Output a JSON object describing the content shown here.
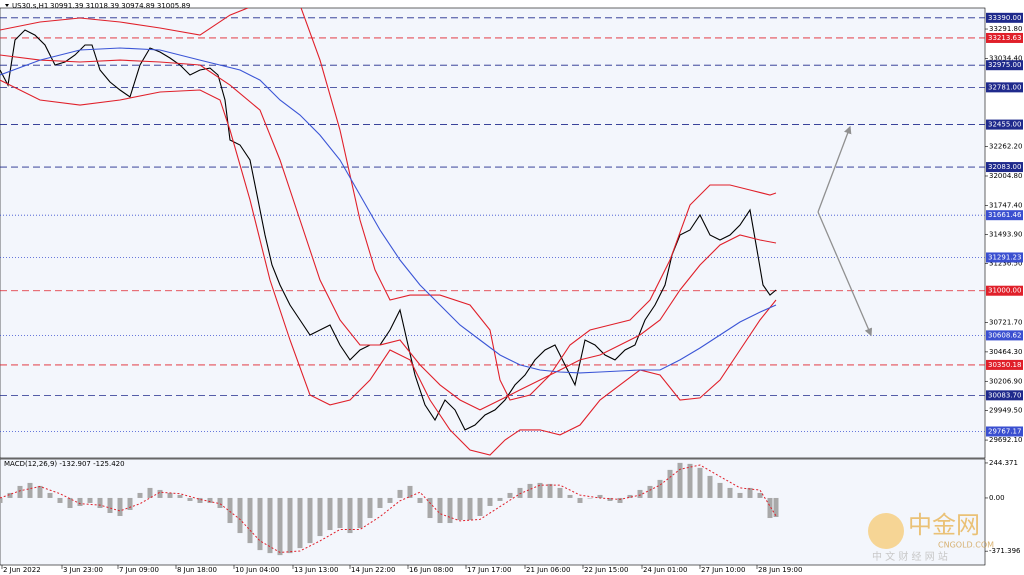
{
  "chart_data": [
    {
      "type": "line",
      "title": "US30.s,H1",
      "ohlc_label": "30991.39 31018.39 30974.89 31005.89",
      "xlim": [
        0,
        985
      ],
      "ylim": [
        29535,
        33476
      ],
      "yticks": [
        {
          "value": 33291.8,
          "label": "33291.80"
        },
        {
          "value": 33034.4,
          "label": "33034.40"
        },
        {
          "value": 32262.2,
          "label": "32262.20"
        },
        {
          "value": 32004.8,
          "label": "32004.80"
        },
        {
          "value": 31747.4,
          "label": "31747.40"
        },
        {
          "value": 31493.9,
          "label": "31493.90"
        },
        {
          "value": 31236.5,
          "label": "31236.50"
        },
        {
          "value": 30721.7,
          "label": "30721.70"
        },
        {
          "value": 30464.3,
          "label": "30464.30"
        },
        {
          "value": 30206.9,
          "label": "30206.90"
        },
        {
          "value": 29949.5,
          "label": "29949.50"
        },
        {
          "value": 29692.1,
          "label": "29692.10"
        }
      ],
      "levels": [
        {
          "value": 33390,
          "label": "33390.00",
          "color": "#1f2a8c"
        },
        {
          "value": 33213.63,
          "label": "33213.63",
          "color": "#e0202a"
        },
        {
          "value": 32975,
          "label": "32975.00",
          "color": "#1f2a8c"
        },
        {
          "value": 32781,
          "label": "32781.00",
          "color": "#1f2a8c"
        },
        {
          "value": 32455,
          "label": "32455.00",
          "color": "#1f2a8c"
        },
        {
          "value": 32083,
          "label": "32083.00",
          "color": "#1f2a8c"
        },
        {
          "value": 31661.46,
          "label": "31661.46",
          "color": "#3a4fd0"
        },
        {
          "value": 31291.23,
          "label": "31291.23",
          "color": "#3a4fd0"
        },
        {
          "value": 31000,
          "label": "31000.00",
          "color": "#e0202a"
        },
        {
          "value": 30608.62,
          "label": "30608.62",
          "color": "#3a4fd0"
        },
        {
          "value": 30350.18,
          "label": "30350.18",
          "color": "#e0202a"
        },
        {
          "value": 30083.7,
          "label": "30083.70",
          "color": "#1f2a8c"
        },
        {
          "value": 29767.17,
          "label": "29767.17",
          "color": "#3a4fd0"
        }
      ],
      "series": [
        {
          "color": "#000000",
          "x": [
            0,
            8,
            15,
            25,
            35,
            45,
            55,
            65,
            75,
            85,
            92,
            100,
            110,
            120,
            130,
            140,
            150,
            160,
            170,
            180,
            190,
            200,
            210,
            218,
            225,
            230,
            240,
            250,
            258,
            265,
            272,
            280,
            290,
            300,
            310,
            320,
            330,
            340,
            350,
            360,
            370,
            380,
            390,
            400,
            408,
            415,
            425,
            435,
            445,
            455,
            465,
            475,
            485,
            495,
            505,
            515,
            525,
            535,
            545,
            555,
            565,
            575,
            585,
            595,
            605,
            615,
            625,
            635,
            645,
            655,
            665,
            672,
            680,
            690,
            700,
            710,
            720,
            730,
            740,
            750,
            757,
            763,
            770,
            776
          ],
          "values": [
            32933,
            32801,
            33196,
            33283,
            33239,
            33152,
            32977,
            33003,
            33064,
            33152,
            33152,
            32933,
            32828,
            32758,
            32697,
            32977,
            33126,
            33091,
            33038,
            32977,
            32889,
            32933,
            32950,
            32889,
            32670,
            32320,
            32276,
            32145,
            31795,
            31488,
            31225,
            31050,
            30875,
            30744,
            30612,
            30656,
            30700,
            30525,
            30394,
            30481,
            30525,
            30525,
            30656,
            30831,
            30525,
            30262,
            30000,
            29868,
            30043,
            29956,
            29781,
            29824,
            29912,
            29956,
            30043,
            30175,
            30262,
            30394,
            30481,
            30525,
            30350,
            30175,
            30568,
            30525,
            30437,
            30394,
            30481,
            30525,
            30744,
            30875,
            31050,
            31313,
            31488,
            31532,
            31663,
            31488,
            31444,
            31488,
            31576,
            31707,
            31357,
            31050,
            30962,
            31006
          ]
        },
        {
          "color": "#e0202a",
          "x": [
            0,
            40,
            80,
            120,
            160,
            200,
            230,
            260,
            280,
            300,
            320,
            340,
            360,
            375,
            390,
            410,
            440,
            470,
            490,
            500,
            510,
            530,
            550,
            570,
            590,
            610,
            630,
            650,
            670,
            690,
            710,
            730,
            750,
            770,
            776
          ],
          "values": [
            33283,
            33353,
            33388,
            33353,
            33301,
            33239,
            33414,
            33519,
            33590,
            33502,
            33020,
            32407,
            31619,
            31182,
            30919,
            30962,
            30962,
            30875,
            30656,
            30218,
            30043,
            30087,
            30262,
            30525,
            30656,
            30700,
            30744,
            30919,
            31269,
            31751,
            31926,
            31926,
            31882,
            31838,
            31856
          ]
        },
        {
          "color": "#e0202a",
          "x": [
            0,
            40,
            80,
            120,
            160,
            200,
            230,
            260,
            280,
            300,
            320,
            340,
            360,
            380,
            400,
            420,
            440,
            460,
            480,
            500,
            520,
            540,
            560,
            580,
            600,
            620,
            640,
            660,
            680,
            700,
            720,
            740,
            760,
            776
          ],
          "values": [
            33064,
            33020,
            33003,
            33020,
            33003,
            32977,
            32801,
            32582,
            32145,
            31619,
            31094,
            30744,
            30525,
            30525,
            30568,
            30350,
            30175,
            30043,
            29956,
            30043,
            30131,
            30218,
            30306,
            30394,
            30437,
            30525,
            30612,
            30744,
            31006,
            31225,
            31400,
            31488,
            31444,
            31418
          ]
        },
        {
          "color": "#e0202a",
          "x": [
            0,
            40,
            80,
            120,
            160,
            200,
            220,
            230,
            250,
            270,
            290,
            310,
            330,
            350,
            370,
            390,
            410,
            430,
            450,
            470,
            490,
            505,
            520,
            540,
            560,
            580,
            600,
            620,
            640,
            660,
            680,
            700,
            720,
            740,
            760,
            776
          ],
          "values": [
            32845,
            32670,
            32626,
            32670,
            32740,
            32758,
            32670,
            32407,
            31795,
            31094,
            30568,
            30087,
            30000,
            30043,
            30218,
            30481,
            30394,
            30043,
            29781,
            29605,
            29561,
            29693,
            29781,
            29781,
            29737,
            29824,
            30043,
            30175,
            30306,
            30262,
            30043,
            30061,
            30218,
            30481,
            30744,
            30919
          ]
        },
        {
          "color": "#3b55d6",
          "x": [
            0,
            40,
            80,
            120,
            160,
            200,
            240,
            260,
            280,
            300,
            320,
            340,
            360,
            380,
            400,
            420,
            440,
            460,
            480,
            500,
            520,
            540,
            560,
            580,
            600,
            620,
            640,
            660,
            680,
            700,
            720,
            740,
            760,
            776
          ],
          "values": [
            32889,
            33020,
            33108,
            33126,
            33108,
            33020,
            32933,
            32845,
            32670,
            32539,
            32363,
            32145,
            31838,
            31532,
            31269,
            31050,
            30875,
            30700,
            30568,
            30437,
            30350,
            30306,
            30288,
            30280,
            30288,
            30297,
            30306,
            30306,
            30394,
            30498,
            30612,
            30726,
            30813,
            30875
          ]
        }
      ]
    },
    {
      "type": "bar",
      "title": "MACD(12,26,9) -132.907 -125.420",
      "xlim": [
        0,
        985
      ],
      "ylim": [
        -468,
        272
      ],
      "yticks": [
        {
          "value": 244.371,
          "label": "244.371"
        },
        {
          "value": 0,
          "label": "0.00"
        },
        {
          "value": -371.396,
          "label": "-371.396"
        }
      ],
      "xticks": [
        {
          "value": 2,
          "label": "2 Jun 2022"
        },
        {
          "value": 62,
          "label": "3 Jun 23:00"
        },
        {
          "value": 118,
          "label": "7 Jun 09:00"
        },
        {
          "value": 176,
          "label": "8 Jun 18:00"
        },
        {
          "value": 234,
          "label": "10 Jun 04:00"
        },
        {
          "value": 293,
          "label": "13 Jun 13:00"
        },
        {
          "value": 350,
          "label": "14 Jun 22:00"
        },
        {
          "value": 408,
          "label": "16 Jun 08:00"
        },
        {
          "value": 466,
          "label": "17 Jun 17:00"
        },
        {
          "value": 525,
          "label": "21 Jun 06:00"
        },
        {
          "value": 583,
          "label": "22 Jun 15:00"
        },
        {
          "value": 642,
          "label": "24 Jun 01:00"
        },
        {
          "value": 700,
          "label": "27 Jun 10:00"
        },
        {
          "value": 757,
          "label": "28 Jun 19:00"
        }
      ],
      "series": [
        {
          "type": "bar",
          "color": "#a8a8a8",
          "x": [
            0,
            10,
            20,
            30,
            40,
            50,
            60,
            70,
            80,
            90,
            100,
            110,
            120,
            130,
            140,
            150,
            160,
            170,
            180,
            190,
            200,
            210,
            220,
            230,
            240,
            250,
            260,
            270,
            280,
            290,
            300,
            310,
            320,
            330,
            340,
            350,
            360,
            370,
            380,
            390,
            400,
            410,
            420,
            430,
            440,
            450,
            460,
            470,
            480,
            490,
            500,
            510,
            520,
            530,
            540,
            550,
            560,
            570,
            580,
            590,
            600,
            610,
            620,
            630,
            640,
            650,
            660,
            670,
            680,
            690,
            700,
            710,
            720,
            730,
            740,
            750,
            760,
            770,
            776
          ],
          "values": [
            -35,
            35,
            84,
            105,
            84,
            35,
            -35,
            -70,
            -56,
            -35,
            -70,
            -105,
            -126,
            -84,
            35,
            70,
            56,
            35,
            21,
            -21,
            -35,
            -35,
            -70,
            -175,
            -245,
            -315,
            -364,
            -385,
            -399,
            -385,
            -350,
            -315,
            -266,
            -224,
            -210,
            -245,
            -210,
            -140,
            -70,
            -35,
            56,
            84,
            -35,
            -140,
            -175,
            -175,
            -154,
            -154,
            -126,
            -56,
            -21,
            35,
            70,
            98,
            105,
            98,
            70,
            21,
            -35,
            0,
            21,
            -21,
            -35,
            21,
            56,
            84,
            126,
            196,
            245,
            238,
            210,
            154,
            105,
            70,
            35,
            70,
            35,
            -140,
            -133
          ]
        },
        {
          "type": "line",
          "color": "#e0202a",
          "x": [
            0,
            20,
            40,
            60,
            80,
            100,
            120,
            140,
            160,
            180,
            200,
            220,
            240,
            260,
            280,
            300,
            320,
            340,
            360,
            380,
            400,
            420,
            440,
            460,
            480,
            500,
            520,
            540,
            560,
            580,
            600,
            620,
            640,
            660,
            680,
            700,
            720,
            740,
            760,
            776
          ],
          "values": [
            0,
            50,
            80,
            30,
            -40,
            -50,
            -90,
            -40,
            40,
            30,
            -10,
            -40,
            -150,
            -300,
            -380,
            -370,
            -300,
            -220,
            -220,
            -130,
            -20,
            40,
            -110,
            -160,
            -150,
            -60,
            30,
            90,
            90,
            20,
            0,
            -10,
            20,
            90,
            200,
            230,
            150,
            70,
            55,
            -125
          ]
        }
      ]
    }
  ],
  "watermark": {
    "logo": "中金网",
    "site": "CNGOLD.COM",
    "tagline": "中 文 财 经 网 站"
  }
}
